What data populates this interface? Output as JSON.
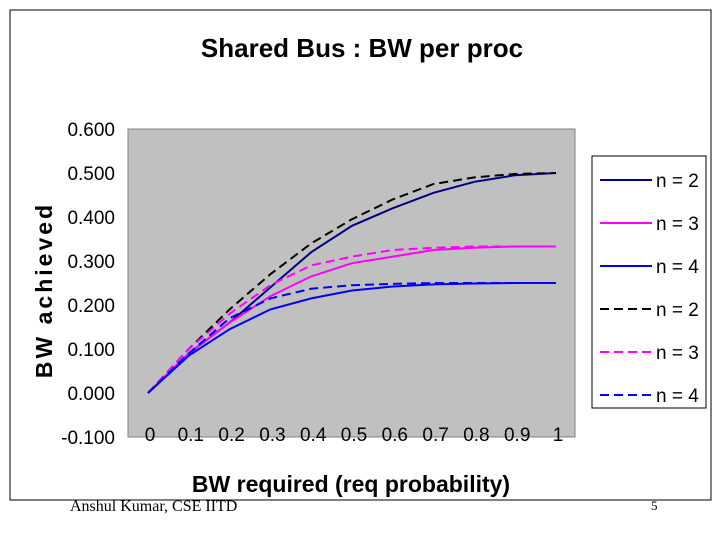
{
  "chart_data": {
    "type": "line",
    "title": "Shared Bus : BW per proc",
    "xlabel": "BW required (req probability)",
    "ylabel": "BW achieved",
    "x": [
      0,
      0.1,
      0.2,
      0.3,
      0.4,
      0.5,
      0.6,
      0.7,
      0.8,
      0.9,
      1
    ],
    "x_tick_labels": [
      "0",
      "0.1",
      "0.2",
      "0.3",
      "0.4",
      "0.5",
      "0.6",
      "0.7",
      "0.8",
      "0.9",
      "1"
    ],
    "y_ticks": [
      -0.1,
      0,
      0.1,
      0.2,
      0.3,
      0.4,
      0.5,
      0.6
    ],
    "y_tick_labels": [
      "-0.100",
      "0.000",
      "0.100",
      "0.200",
      "0.300",
      "0.400",
      "0.500",
      "0.600"
    ],
    "ylim": [
      -0.1,
      0.6
    ],
    "grid": false,
    "legend_position": "right",
    "plot_background": "#c0c0c0",
    "series": [
      {
        "name": "n = 2",
        "color": "#000080",
        "dash": "solid",
        "values": [
          0,
          0.09,
          0.16,
          0.24,
          0.32,
          0.38,
          0.42,
          0.455,
          0.48,
          0.495,
          0.5
        ]
      },
      {
        "name": "n = 3",
        "color": "#ff00ff",
        "dash": "solid",
        "values": [
          0,
          0.09,
          0.16,
          0.22,
          0.265,
          0.295,
          0.31,
          0.325,
          0.33,
          0.333,
          0.333
        ]
      },
      {
        "name": "n = 4",
        "color": "#0000ff",
        "dash": "solid",
        "values": [
          0,
          0.085,
          0.145,
          0.19,
          0.215,
          0.233,
          0.242,
          0.247,
          0.249,
          0.25,
          0.25
        ]
      },
      {
        "name": "n = 2",
        "color": "#000000",
        "dash": "dashed",
        "values": [
          0,
          0.1,
          0.19,
          0.27,
          0.34,
          0.395,
          0.44,
          0.475,
          0.49,
          0.498,
          0.5
        ]
      },
      {
        "name": "n = 3",
        "color": "#ff00ff",
        "dash": "dashed",
        "values": [
          0,
          0.1,
          0.18,
          0.245,
          0.29,
          0.31,
          0.325,
          0.33,
          0.333,
          0.333,
          0.333
        ]
      },
      {
        "name": "n = 4",
        "color": "#0000ff",
        "dash": "dashed",
        "values": [
          0,
          0.09,
          0.17,
          0.215,
          0.237,
          0.245,
          0.248,
          0.25,
          0.25,
          0.25,
          0.25
        ]
      }
    ]
  },
  "footer": {
    "author": "Anshul Kumar, CSE IITD",
    "page_number": "5"
  }
}
